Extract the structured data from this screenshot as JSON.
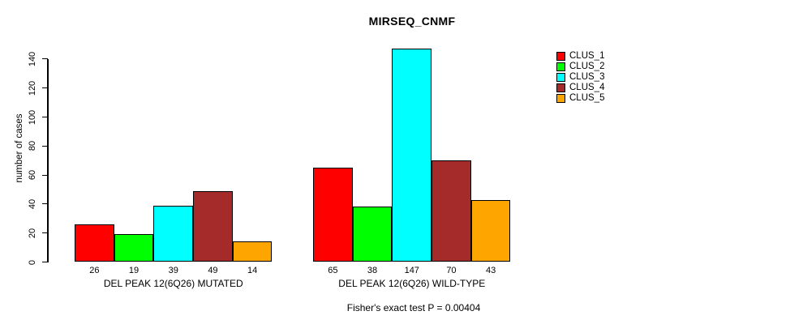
{
  "title": "MIRSEQ_CNMF",
  "chart_data": {
    "type": "bar",
    "title": "MIRSEQ_CNMF",
    "xlabel": "",
    "ylabel": "number of cases",
    "ylim": [
      0,
      140
    ],
    "yticks": [
      0,
      20,
      40,
      60,
      80,
      100,
      120,
      140
    ],
    "grid": false,
    "legend_position": "right",
    "categories": [
      "DEL PEAK 12(6Q26) MUTATED",
      "DEL PEAK 12(6Q26) WILD-TYPE"
    ],
    "series": [
      {
        "name": "CLUS_1",
        "color": "#ff0000",
        "values": [
          26,
          65
        ]
      },
      {
        "name": "CLUS_2",
        "color": "#00ff00",
        "values": [
          19,
          38
        ]
      },
      {
        "name": "CLUS_3",
        "color": "#00ffff",
        "values": [
          39,
          147
        ]
      },
      {
        "name": "CLUS_4",
        "color": "#a52a2a",
        "values": [
          49,
          70
        ]
      },
      {
        "name": "CLUS_5",
        "color": "#ffa500",
        "values": [
          14,
          43
        ]
      }
    ],
    "bar_value_labels": [
      [
        26,
        19,
        39,
        49,
        14
      ],
      [
        65,
        38,
        147,
        70,
        43
      ]
    ],
    "caption": "Fisher's exact test P = 0.00404",
    "axis_color": "#000000",
    "background_color": "#ffffff"
  }
}
